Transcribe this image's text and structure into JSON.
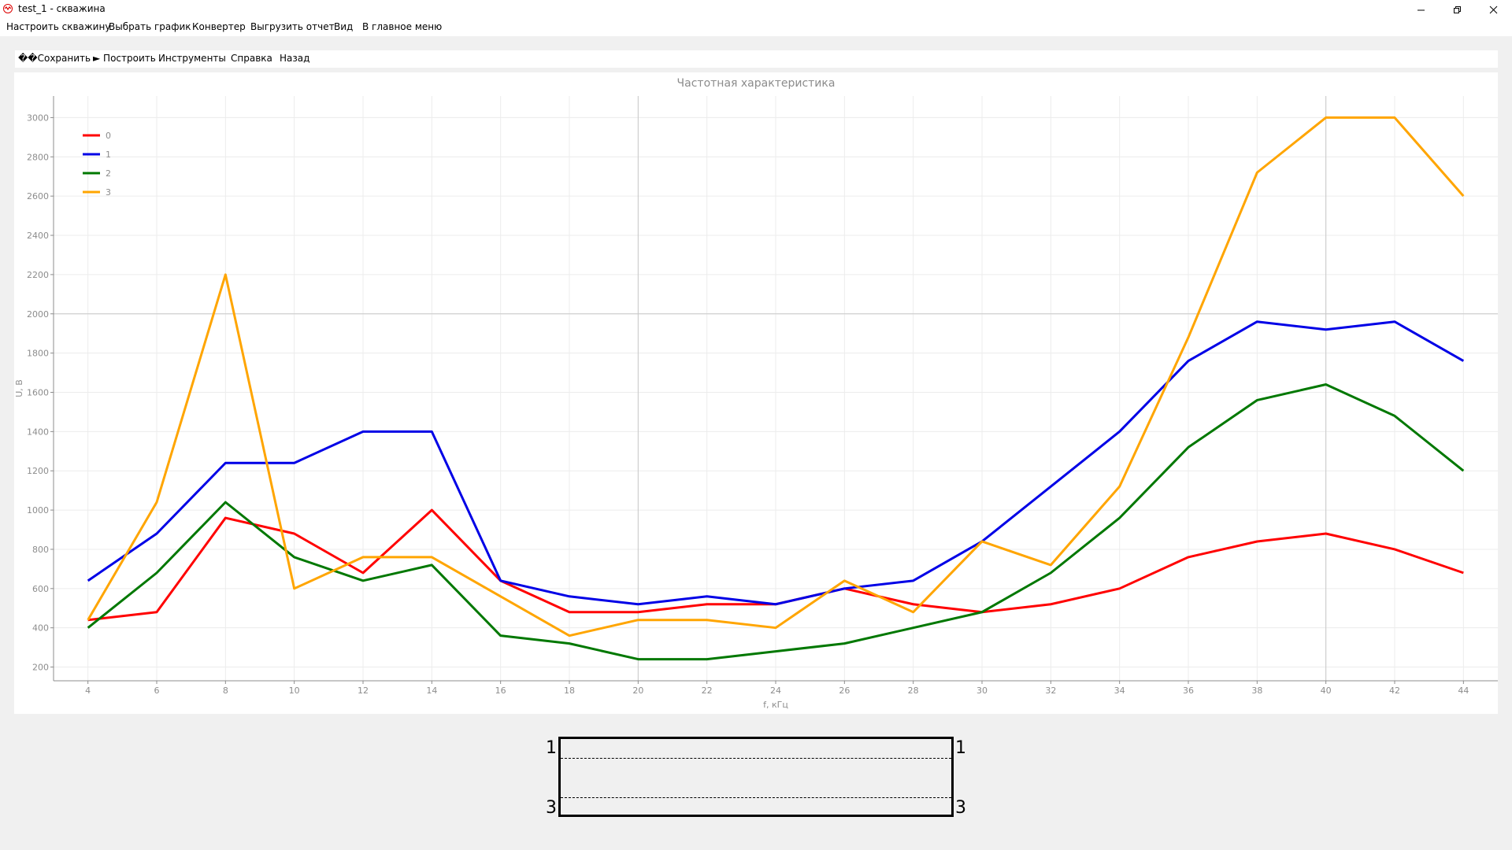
{
  "window": {
    "title": "test_1 - скважина"
  },
  "menu": {
    "items": [
      "Настроить скважину",
      "Выбрать график",
      "Конвертер",
      "Выгрузить отчет",
      "Вид",
      "В главное меню"
    ]
  },
  "toolbar": {
    "save": "��Сохранить",
    "build": "► Построить",
    "tools": "Инструменты",
    "help": "Справка",
    "back": "Назад"
  },
  "chart_data": {
    "type": "line",
    "title": "Частотная характеристика",
    "xlabel": "f, кГц",
    "ylabel": "U, В",
    "x": [
      4,
      6,
      8,
      10,
      12,
      14,
      16,
      18,
      20,
      22,
      24,
      26,
      28,
      30,
      32,
      34,
      36,
      38,
      40,
      42,
      44
    ],
    "xlim": [
      3,
      45
    ],
    "ylim": [
      130,
      3110
    ],
    "yticks": [
      200,
      400,
      600,
      800,
      1000,
      1200,
      1400,
      1600,
      1800,
      2000,
      2200,
      2400,
      2600,
      2800,
      3000
    ],
    "grid": true,
    "legend_position": "top-left",
    "series": [
      {
        "name": "0",
        "color": "#ff0000",
        "values": [
          440,
          480,
          960,
          880,
          680,
          1000,
          640,
          480,
          480,
          520,
          520,
          600,
          520,
          480,
          520,
          600,
          760,
          840,
          880,
          800,
          680
        ]
      },
      {
        "name": "1",
        "color": "#0000e6",
        "values": [
          640,
          880,
          1240,
          1240,
          1400,
          1400,
          640,
          560,
          520,
          560,
          520,
          600,
          640,
          840,
          1120,
          1400,
          1760,
          1960,
          1920,
          1960,
          1760
        ]
      },
      {
        "name": "2",
        "color": "#007800",
        "values": [
          400,
          680,
          1040,
          760,
          640,
          720,
          360,
          320,
          240,
          240,
          280,
          320,
          400,
          480,
          680,
          960,
          1320,
          1560,
          1640,
          1480,
          1200
        ]
      },
      {
        "name": "3",
        "color": "#ffa500",
        "values": [
          440,
          1040,
          2200,
          600,
          760,
          760,
          560,
          360,
          440,
          440,
          400,
          640,
          480,
          840,
          720,
          1120,
          1880,
          2720,
          3000,
          3000,
          2600
        ]
      }
    ]
  },
  "diagram": {
    "top_left": "1",
    "top_right": "1",
    "bottom_left": "3",
    "bottom_right": "3"
  }
}
